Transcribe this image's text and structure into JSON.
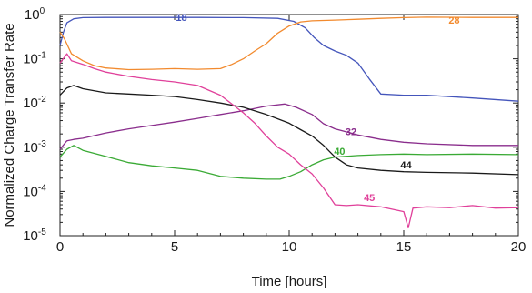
{
  "chart_data": {
    "type": "line",
    "title": "",
    "xlabel": "Time [hours]",
    "ylabel": "Normalized Charge Transfer Rate",
    "x_scale": "linear",
    "y_scale": "log",
    "xlim": [
      0,
      20
    ],
    "ylim": [
      1e-05,
      1
    ],
    "x_ticks": [
      0,
      5,
      10,
      15,
      20
    ],
    "x_tick_labels": [
      "0",
      "5",
      "10",
      "15",
      "20"
    ],
    "y_ticks": [
      1e-05,
      0.0001,
      0.001,
      0.01,
      0.1,
      1
    ],
    "y_tick_labels": [
      {
        "base": "10",
        "exp": "-5"
      },
      {
        "base": "10",
        "exp": "-4"
      },
      {
        "base": "10",
        "exp": "-3"
      },
      {
        "base": "10",
        "exp": "-2"
      },
      {
        "base": "10",
        "exp": "-1"
      },
      {
        "base": "10",
        "exp": "0"
      }
    ],
    "grid": false,
    "legend": "none",
    "series": [
      {
        "name": "18",
        "color": "#4455bb",
        "points": [
          [
            0,
            0.2
          ],
          [
            0.15,
            0.4
          ],
          [
            0.3,
            0.65
          ],
          [
            0.6,
            0.8
          ],
          [
            1,
            0.85
          ],
          [
            2,
            0.86
          ],
          [
            4,
            0.86
          ],
          [
            6,
            0.86
          ],
          [
            8,
            0.85
          ],
          [
            9.5,
            0.82
          ],
          [
            10.2,
            0.7
          ],
          [
            10.7,
            0.5
          ],
          [
            11.1,
            0.3
          ],
          [
            11.5,
            0.2
          ],
          [
            12,
            0.15
          ],
          [
            12.5,
            0.12
          ],
          [
            13,
            0.08
          ],
          [
            13.5,
            0.035
          ],
          [
            14,
            0.016
          ],
          [
            15,
            0.015
          ],
          [
            16,
            0.015
          ],
          [
            18,
            0.013
          ],
          [
            20,
            0.011
          ]
        ]
      },
      {
        "name": "28",
        "color": "#f28a2e",
        "points": [
          [
            0,
            0.4
          ],
          [
            0.2,
            0.28
          ],
          [
            0.5,
            0.13
          ],
          [
            1,
            0.09
          ],
          [
            1.5,
            0.07
          ],
          [
            2,
            0.062
          ],
          [
            3,
            0.057
          ],
          [
            4,
            0.058
          ],
          [
            5,
            0.06
          ],
          [
            6,
            0.058
          ],
          [
            7,
            0.06
          ],
          [
            7.5,
            0.075
          ],
          [
            8,
            0.1
          ],
          [
            8.5,
            0.15
          ],
          [
            9,
            0.22
          ],
          [
            9.5,
            0.38
          ],
          [
            10,
            0.55
          ],
          [
            10.5,
            0.68
          ],
          [
            11,
            0.72
          ],
          [
            12,
            0.75
          ],
          [
            13,
            0.78
          ],
          [
            14,
            0.82
          ],
          [
            15,
            0.85
          ],
          [
            16,
            0.87
          ],
          [
            18,
            0.86
          ],
          [
            20,
            0.86
          ]
        ]
      },
      {
        "name": "32",
        "color": "#8a2d8c",
        "points": [
          [
            0,
            0.0009
          ],
          [
            0.3,
            0.0014
          ],
          [
            0.6,
            0.0015
          ],
          [
            1,
            0.0016
          ],
          [
            2,
            0.0021
          ],
          [
            3,
            0.0026
          ],
          [
            4,
            0.0031
          ],
          [
            5,
            0.0037
          ],
          [
            6,
            0.0045
          ],
          [
            7,
            0.0055
          ],
          [
            8,
            0.0067
          ],
          [
            9,
            0.0085
          ],
          [
            9.8,
            0.0095
          ],
          [
            10.3,
            0.008
          ],
          [
            11,
            0.0055
          ],
          [
            11.5,
            0.0034
          ],
          [
            12,
            0.0026
          ],
          [
            13,
            0.0019
          ],
          [
            14,
            0.0015
          ],
          [
            15,
            0.0013
          ],
          [
            16,
            0.0012
          ],
          [
            18,
            0.0011
          ],
          [
            20,
            0.0011
          ]
        ]
      },
      {
        "name": "40",
        "color": "#3aaa35",
        "points": [
          [
            0,
            0.0006
          ],
          [
            0.3,
            0.0009
          ],
          [
            0.6,
            0.0011
          ],
          [
            1,
            0.00085
          ],
          [
            2,
            0.00062
          ],
          [
            3,
            0.00045
          ],
          [
            4,
            0.00038
          ],
          [
            5,
            0.00034
          ],
          [
            6,
            0.0003
          ],
          [
            7,
            0.00022
          ],
          [
            8,
            0.0002
          ],
          [
            9,
            0.00019
          ],
          [
            9.6,
            0.00019
          ],
          [
            10,
            0.00022
          ],
          [
            10.5,
            0.00028
          ],
          [
            11,
            0.0004
          ],
          [
            11.5,
            0.00052
          ],
          [
            12,
            0.0006
          ],
          [
            13,
            0.00065
          ],
          [
            14,
            0.00068
          ],
          [
            15,
            0.0007
          ],
          [
            16,
            0.00068
          ],
          [
            18,
            0.0007
          ],
          [
            20,
            0.00068
          ]
        ]
      },
      {
        "name": "44",
        "color": "#1a1a1a",
        "points": [
          [
            0,
            0.015
          ],
          [
            0.3,
            0.022
          ],
          [
            0.6,
            0.025
          ],
          [
            1,
            0.021
          ],
          [
            2,
            0.017
          ],
          [
            3,
            0.016
          ],
          [
            4,
            0.015
          ],
          [
            5,
            0.014
          ],
          [
            6,
            0.012
          ],
          [
            7,
            0.01
          ],
          [
            8,
            0.008
          ],
          [
            9,
            0.0055
          ],
          [
            10,
            0.0035
          ],
          [
            10.5,
            0.0025
          ],
          [
            11,
            0.0018
          ],
          [
            11.5,
            0.0011
          ],
          [
            12,
            0.0006
          ],
          [
            12.5,
            0.0004
          ],
          [
            13,
            0.00034
          ],
          [
            14,
            0.0003
          ],
          [
            15,
            0.00028
          ],
          [
            16,
            0.00027
          ],
          [
            18,
            0.00026
          ],
          [
            20,
            0.00024
          ]
        ]
      },
      {
        "name": "45",
        "color": "#e0409a",
        "points": [
          [
            0,
            0.08
          ],
          [
            0.3,
            0.13
          ],
          [
            0.5,
            0.09
          ],
          [
            1,
            0.075
          ],
          [
            1.5,
            0.06
          ],
          [
            2,
            0.05
          ],
          [
            3,
            0.04
          ],
          [
            4,
            0.034
          ],
          [
            5,
            0.03
          ],
          [
            6,
            0.025
          ],
          [
            7,
            0.015
          ],
          [
            8,
            0.006
          ],
          [
            8.5,
            0.0035
          ],
          [
            9,
            0.0018
          ],
          [
            9.5,
            0.001
          ],
          [
            10,
            0.0007
          ],
          [
            10.5,
            0.0004
          ],
          [
            11,
            0.00025
          ],
          [
            11.5,
            0.00012
          ],
          [
            12,
            5e-05
          ],
          [
            12.5,
            4.8e-05
          ],
          [
            13,
            5e-05
          ],
          [
            14,
            4.5e-05
          ],
          [
            15,
            3.5e-05
          ],
          [
            15.2,
            1.5e-05
          ],
          [
            15.4,
            4.2e-05
          ],
          [
            16,
            4.5e-05
          ],
          [
            17,
            4.3e-05
          ],
          [
            18,
            4.8e-05
          ],
          [
            19,
            4.2e-05
          ],
          [
            20,
            4.3e-05
          ]
        ]
      }
    ],
    "series_labels": [
      {
        "text": "18",
        "series": "18",
        "x": 5.3,
        "y": 0.72
      },
      {
        "text": "28",
        "series": "28",
        "x": 17.2,
        "y": 0.62
      },
      {
        "text": "32",
        "series": "32",
        "x": 12.7,
        "y": 0.0019
      },
      {
        "text": "40",
        "series": "40",
        "x": 12.2,
        "y": 0.00068
      },
      {
        "text": "44",
        "series": "44",
        "x": 15.1,
        "y": 0.00033
      },
      {
        "text": "45",
        "series": "45",
        "x": 13.5,
        "y": 6e-05
      }
    ]
  }
}
